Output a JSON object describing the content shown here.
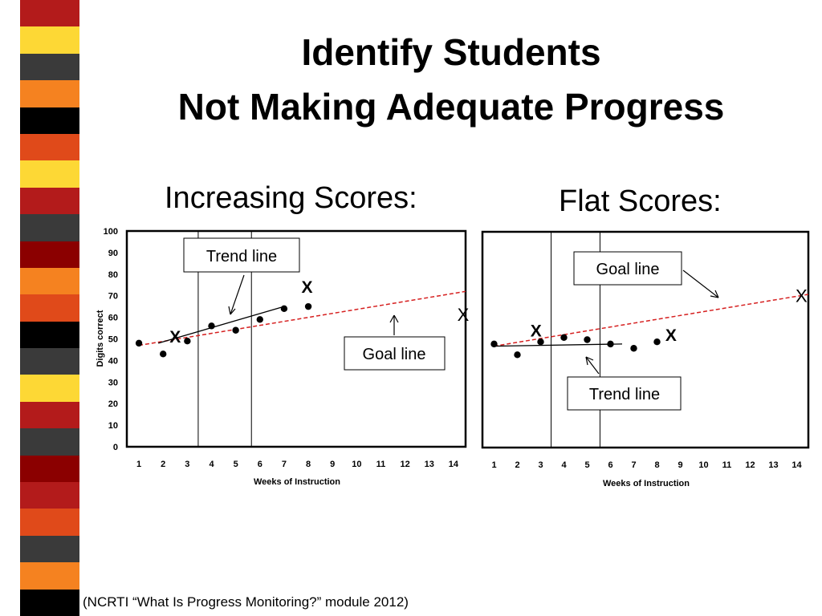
{
  "slide": {
    "title_line1": "Identify Students",
    "title_line2": "Not Making Adequate Progress",
    "citation": "(NCRTI “What Is Progress Monitoring?” module 2012)"
  },
  "stripe_colors": [
    "#b31b1b",
    "#fdd835",
    "#3a3a3a",
    "#f58220",
    "#000000",
    "#e04a1a",
    "#fdd835",
    "#b31b1b",
    "#3a3a3a",
    "#8b0000",
    "#f58220",
    "#e04a1a",
    "#000000",
    "#3a3a3a",
    "#fdd835",
    "#b31b1b",
    "#3a3a3a",
    "#8b0000",
    "#b31b1b",
    "#e04a1a",
    "#3a3a3a",
    "#f58220",
    "#000000"
  ],
  "colors": {
    "goal_line": "#d62020",
    "points": "#000000"
  },
  "chart_data": [
    {
      "type": "scatter",
      "title": "Increasing Scores:",
      "xlabel": "Weeks of Instruction",
      "ylabel": "Digits correct",
      "xlim": [
        0.5,
        14.5
      ],
      "ylim": [
        0,
        100
      ],
      "x_ticks": [
        1,
        2,
        3,
        4,
        5,
        6,
        7,
        8,
        9,
        10,
        11,
        12,
        13,
        14
      ],
      "y_ticks": [
        0,
        10,
        20,
        30,
        40,
        50,
        60,
        70,
        80,
        90,
        100
      ],
      "phase_lines": [
        3.45,
        5.65
      ],
      "grid": false,
      "series": [
        {
          "x": [
            1,
            2,
            3,
            4,
            5,
            6,
            7,
            8
          ],
          "y": [
            48,
            43,
            49,
            56,
            54,
            59,
            64,
            65
          ]
        }
      ],
      "goal_line": {
        "x": [
          1,
          14.5
        ],
        "y": [
          47,
          72
        ]
      },
      "trend_line": {
        "x": [
          1.8,
          7
        ],
        "y": [
          48,
          65
        ]
      },
      "x_markers": [
        {
          "x": 2.5,
          "y": 51
        },
        {
          "x": 7.95,
          "y": 74
        },
        {
          "x": 14.4,
          "y": 61
        }
      ],
      "annotations": [
        {
          "text": "Trend line",
          "target": "trend_line"
        },
        {
          "text": "Goal line",
          "target": "goal_line"
        }
      ],
      "marker_label": "X"
    },
    {
      "type": "scatter",
      "title": "Flat Scores:",
      "xlabel": "Weeks of Instruction",
      "ylabel": "",
      "xlim": [
        0.5,
        14.5
      ],
      "ylim": [
        0,
        100
      ],
      "x_ticks": [
        1,
        2,
        3,
        4,
        5,
        6,
        7,
        8,
        9,
        10,
        11,
        12,
        13,
        14
      ],
      "phase_lines": [
        3.45,
        5.55
      ],
      "grid": false,
      "series": [
        {
          "x": [
            1,
            2,
            3,
            4,
            5,
            6,
            7,
            8
          ],
          "y": [
            48,
            43,
            49,
            51,
            50,
            48,
            46,
            49
          ]
        }
      ],
      "goal_line": {
        "x": [
          1,
          14.5
        ],
        "y": [
          47,
          71
        ]
      },
      "trend_line": {
        "x": [
          1,
          6.5
        ],
        "y": [
          47,
          48
        ]
      },
      "x_markers": [
        {
          "x": 2.8,
          "y": 54
        },
        {
          "x": 8.6,
          "y": 52
        },
        {
          "x": 14.2,
          "y": 70
        }
      ],
      "annotations": [
        {
          "text": "Goal line",
          "target": "goal_line"
        },
        {
          "text": "Trend line",
          "target": "trend_line"
        }
      ],
      "marker_label": "X"
    }
  ]
}
